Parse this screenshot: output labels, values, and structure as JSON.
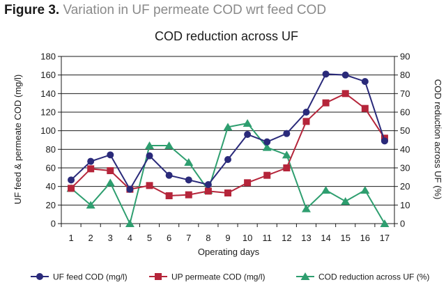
{
  "figure": {
    "number": "Figure 3.",
    "caption": "Variation in UF permeate COD wrt feed COD"
  },
  "colors": {
    "feed": "#2a2a7a",
    "permeate": "#b5253a",
    "reduction": "#2e9e6f",
    "grid": "#1a1a1a",
    "text": "#1a1a1a"
  },
  "chart_data": {
    "type": "line",
    "title": "COD reduction across UF",
    "xlabel": "Operating days",
    "ylabel": "UF feed & permeate COD (mg/l)",
    "y2label": "COD reduction across UF (%)",
    "categories": [
      "1",
      "2",
      "3",
      "4",
      "5",
      "6",
      "7",
      "8",
      "9",
      "10",
      "11",
      "12",
      "13",
      "14",
      "15",
      "16",
      "17"
    ],
    "ylim": [
      0,
      180
    ],
    "yticks": [
      0,
      20,
      40,
      60,
      80,
      100,
      120,
      140,
      160,
      180
    ],
    "y2lim": [
      0,
      90
    ],
    "y2ticks": [
      0,
      10,
      20,
      30,
      40,
      50,
      60,
      70,
      80,
      90
    ],
    "grid": true,
    "legend_position": "bottom",
    "series": [
      {
        "name": "UF feed COD (mg/l)",
        "axis": "left",
        "marker": "circle",
        "values": [
          47,
          67,
          74,
          37,
          73,
          52,
          47,
          42,
          69,
          96,
          88,
          97,
          120,
          161,
          160,
          153,
          89
        ]
      },
      {
        "name": "UP permeate COD (mg/l)",
        "axis": "left",
        "marker": "square",
        "values": [
          38,
          59,
          57,
          37,
          41,
          30,
          31,
          35,
          33,
          44,
          52,
          60,
          110,
          130,
          140,
          124,
          92
        ]
      },
      {
        "name": "COD reduction across UF (%)",
        "axis": "right",
        "marker": "triangle",
        "values": [
          19,
          10,
          22,
          0,
          42,
          42,
          33,
          18,
          52,
          54,
          41,
          37,
          8,
          18,
          12,
          18,
          0
        ]
      }
    ]
  }
}
